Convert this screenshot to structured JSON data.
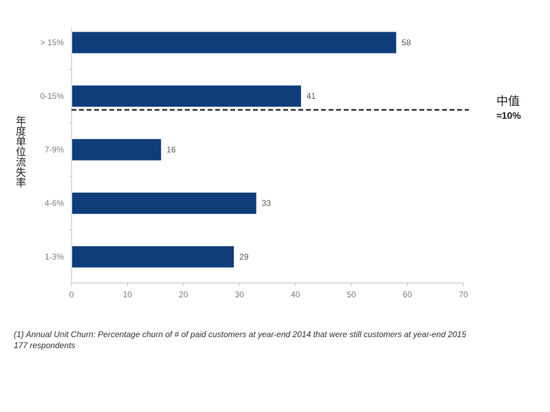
{
  "chart_data": {
    "type": "bar",
    "orientation": "horizontal",
    "categories": [
      "> 15%",
      "0-15%",
      "7-9%",
      "4-6%",
      "1-3%"
    ],
    "values": [
      58,
      41,
      16,
      33,
      29
    ],
    "title": "",
    "xlabel": "",
    "ylabel": "年度单位流失率",
    "xlim": [
      0,
      70
    ],
    "xticks": [
      "0",
      "10",
      "20",
      "30",
      "40",
      "50",
      "60",
      "70"
    ],
    "grid": false,
    "legend": "none",
    "bar_color": "#0e3d7a",
    "annotations": {
      "median_title": "中值",
      "median_value": "≈10%"
    }
  },
  "footnote": {
    "line1": "(1) Annual Unit Churn: Percentage churn of # of paid customers at year-end 2014 that were still customers at year-end 2015",
    "line2": "177 respondents"
  },
  "colors": {
    "bar": "#0e3d7a",
    "axis": "#bfbfbf",
    "median_line": "#333333"
  }
}
